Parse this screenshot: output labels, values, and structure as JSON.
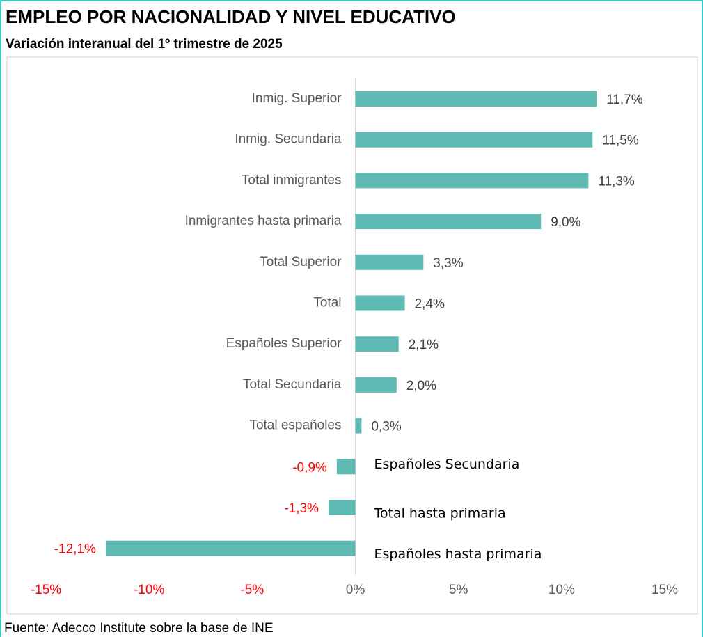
{
  "chart_data": {
    "type": "barh",
    "title": "EMPLEO POR NACIONALIDAD Y NIVEL EDUCATIVO",
    "subtitle": "Variación interanual del 1º trimestre de 2025",
    "source": "Fuente: Adecco Institute sobre la base de INE",
    "categories": [
      "Inmig. Superior",
      "Inmig. Secundaria",
      "Total inmigrantes",
      "Inmigrantes hasta primaria",
      "Total Superior",
      "Total",
      "Españoles Superior",
      "Total Secundaria",
      "Total españoles",
      "Españoles Secundaria",
      "Total hasta primaria",
      "Españoles hasta primaria"
    ],
    "values": [
      11.7,
      11.5,
      11.3,
      9.0,
      3.3,
      2.4,
      2.1,
      2.0,
      0.3,
      -0.9,
      -1.3,
      -12.1
    ],
    "value_labels": [
      "11,7%",
      "11,5%",
      "11,3%",
      "9,0%",
      "3,3%",
      "2,4%",
      "2,1%",
      "2,0%",
      "0,3%",
      "-0,9%",
      "-1,3%",
      "-12,1%"
    ],
    "color": "#5fbab3",
    "xlim": [
      -15,
      15
    ],
    "xticks": [
      {
        "value": -15,
        "label": "-15%"
      },
      {
        "value": -10,
        "label": "-10%"
      },
      {
        "value": -5,
        "label": "-5%"
      },
      {
        "value": 0,
        "label": "0%"
      },
      {
        "value": 5,
        "label": "5%"
      },
      {
        "value": 10,
        "label": "10%"
      },
      {
        "value": 15,
        "label": "15%"
      }
    ],
    "grid": false
  }
}
